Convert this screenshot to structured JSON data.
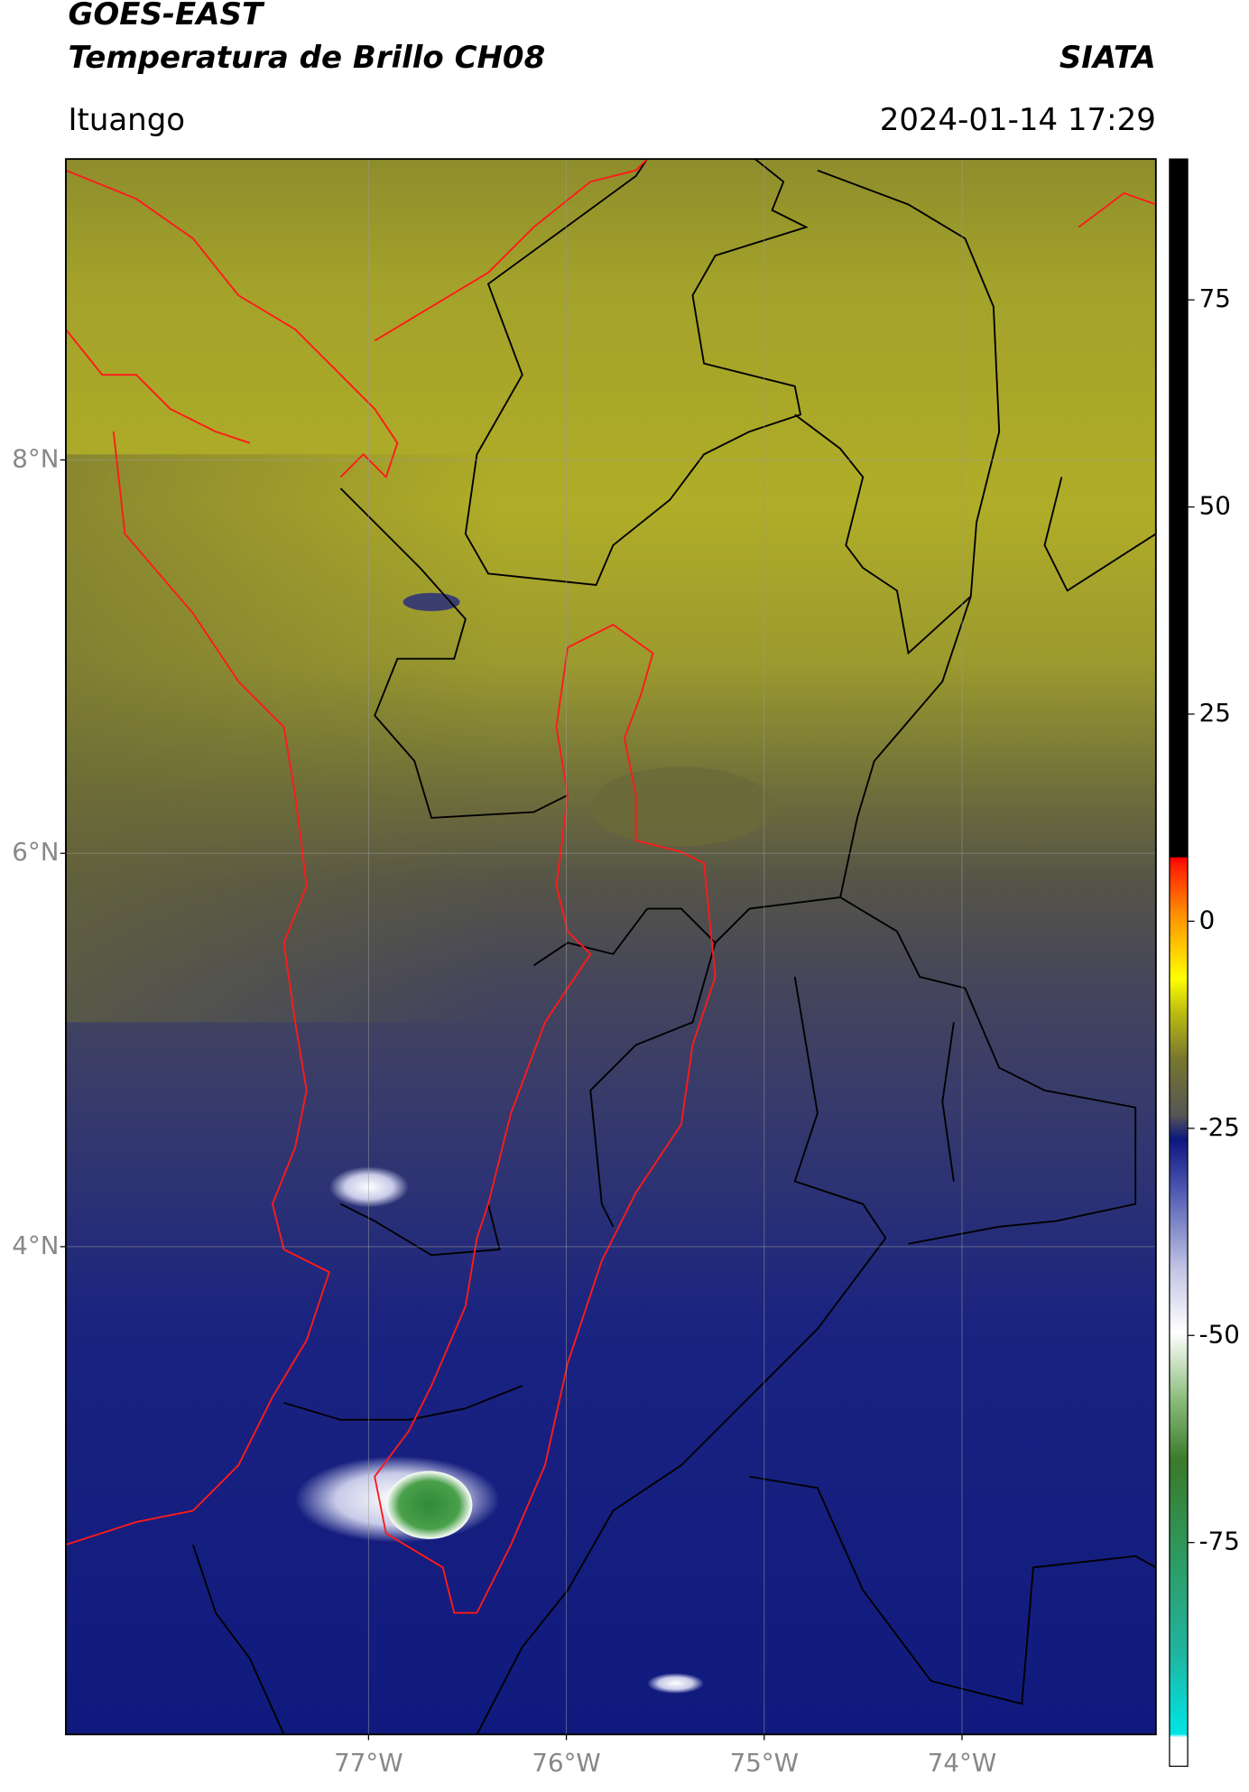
{
  "header": {
    "title": "GOES-EAST",
    "subtitle": "Temperatura de Brillo CH08",
    "brand": "SIATA",
    "location": "Ituango",
    "datetime": "2024-01-14 17:29"
  },
  "map": {
    "lonlim": [
      -78.53,
      -73.02
    ],
    "latlim": [
      1.52,
      9.53
    ],
    "lat_ticks": [
      {
        "value": 8,
        "label": "8°N"
      },
      {
        "value": 6,
        "label": "6°N"
      },
      {
        "value": 4,
        "label": "4°N"
      }
    ],
    "lon_ticks": [
      {
        "value": -77,
        "label": "77°W"
      },
      {
        "value": -76,
        "label": "76°W"
      },
      {
        "value": -75,
        "label": "75°W"
      },
      {
        "value": -74,
        "label": "74°W"
      }
    ],
    "grid": true
  },
  "colorbar": {
    "lim": [
      -102,
      92
    ],
    "ticks": [
      75,
      50,
      25,
      0,
      -25,
      -50,
      -75
    ]
  }
}
